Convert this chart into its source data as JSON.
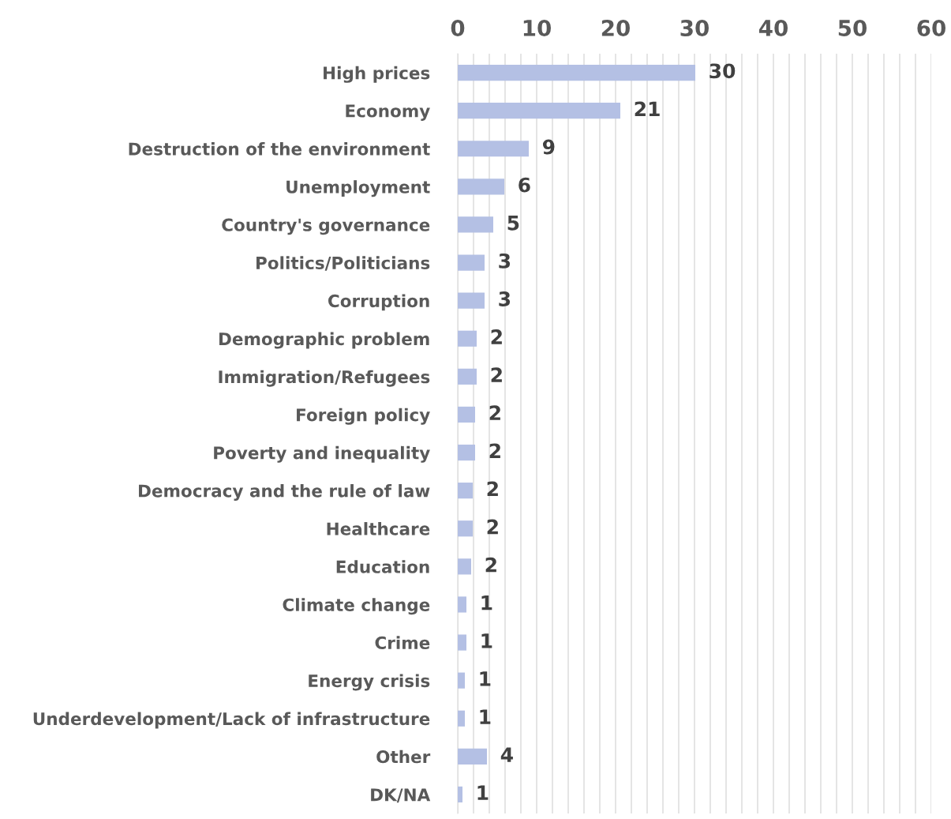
{
  "chart_data": {
    "type": "bar",
    "orientation": "horizontal",
    "categories": [
      "High prices",
      "Economy",
      "Destruction of the environment",
      "Unemployment",
      "Country's governance",
      "Politics/Politicians",
      "Corruption",
      "Demographic problem",
      "Immigration/Refugees",
      "Foreign policy",
      "Poverty and inequality",
      "Democracy and the rule of law",
      "Healthcare",
      "Education",
      "Climate change",
      "Crime",
      "Energy crisis",
      "Underdevelopment/Lack of infrastructure",
      "Other",
      "DK/NA"
    ],
    "values": [
      30.1,
      20.6,
      9.0,
      5.9,
      4.5,
      3.4,
      3.4,
      2.4,
      2.4,
      2.2,
      2.2,
      1.9,
      1.9,
      1.7,
      1.1,
      1.1,
      0.9,
      0.9,
      3.7,
      0.6
    ],
    "value_labels": [
      "30",
      "21",
      "9",
      "6",
      "5",
      "3",
      "3",
      "2",
      "2",
      "2",
      "2",
      "2",
      "2",
      "2",
      "1",
      "1",
      "1",
      "1",
      "4",
      "1"
    ],
    "color": "#b4c0e4",
    "xlim": [
      0,
      60
    ],
    "xticks": [
      0,
      {
        "value": 2,
        "label": null
      },
      {
        "value": 4,
        "label": null
      },
      {
        "value": 6,
        "label": null
      },
      {
        "value": 8,
        "label": null
      },
      10,
      {
        "value": 12,
        "label": null
      },
      {
        "value": 14,
        "label": null
      },
      {
        "value": 16,
        "label": null
      },
      {
        "value": 18,
        "label": null
      },
      20,
      {
        "value": 22,
        "label": null
      },
      {
        "value": 24,
        "label": null
      },
      {
        "value": 26,
        "label": null
      },
      {
        "value": 28,
        "label": null
      },
      30,
      {
        "value": 32,
        "label": null
      },
      {
        "value": 34,
        "label": null
      },
      {
        "value": 36,
        "label": null
      },
      {
        "value": 38,
        "label": null
      },
      40,
      {
        "value": 42,
        "label": null
      },
      {
        "value": 44,
        "label": null
      },
      {
        "value": 46,
        "label": null
      },
      {
        "value": 48,
        "label": null
      },
      50,
      {
        "value": 52,
        "label": null
      },
      {
        "value": 54,
        "label": null
      },
      {
        "value": 56,
        "label": null
      },
      {
        "value": 58,
        "label": null
      },
      60
    ],
    "grid": "x"
  }
}
